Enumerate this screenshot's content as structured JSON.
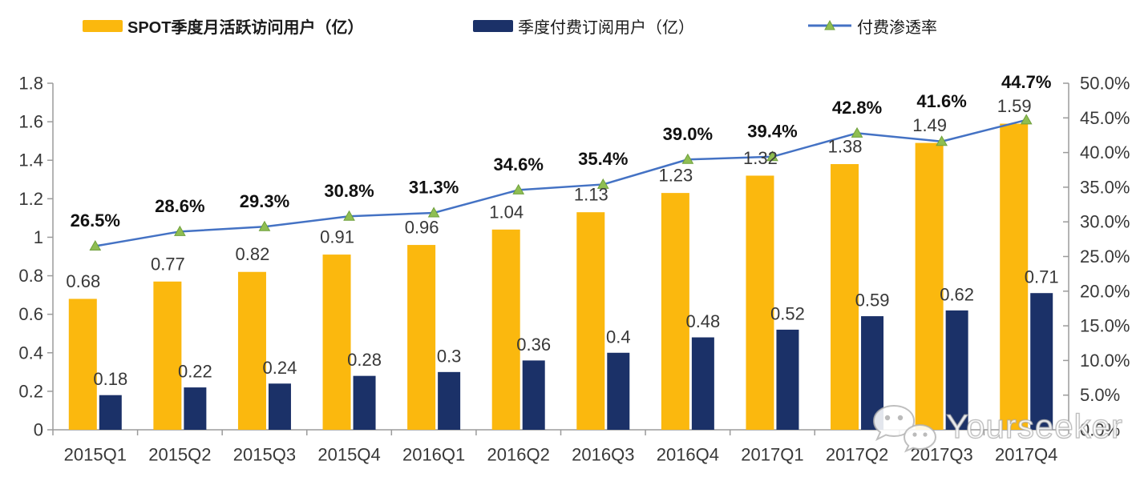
{
  "legend": [
    {
      "label": "SPOT季度月活跃访问用户（亿）",
      "swatch": "bar"
    },
    {
      "label": "季度付费订阅用户（亿）",
      "swatch": "bar"
    },
    {
      "label": "付费渗透率",
      "swatch": "line"
    }
  ],
  "watermark": {
    "brand": "Yourseeker",
    "icon": "wechat-icon"
  },
  "colors": {
    "mau_bar": "#FBB80E",
    "sub_bar": "#1B3168",
    "line": "#4472C4",
    "marker_fill": "#8FBE52",
    "marker_stroke": "#6FA03C",
    "axis": "#9B9B9B",
    "bar_label": "#383838",
    "pct_label": "#111111",
    "tick_label": "#383838"
  },
  "chart_data": {
    "type": "combo",
    "subtypes": [
      "bar",
      "bar",
      "line"
    ],
    "categories": [
      "2015Q1",
      "2015Q2",
      "2015Q3",
      "2015Q4",
      "2016Q1",
      "2016Q2",
      "2016Q3",
      "2016Q4",
      "2017Q1",
      "2017Q2",
      "2017Q3",
      "2017Q4"
    ],
    "series": [
      {
        "name": "SPOT季度月活跃访问用户（亿）",
        "type": "bar",
        "axis": "left",
        "values": [
          0.68,
          0.77,
          0.82,
          0.91,
          0.96,
          1.04,
          1.13,
          1.23,
          1.32,
          1.38,
          1.49,
          1.59
        ],
        "labels": [
          "0.68",
          "0.77",
          "0.82",
          "0.91",
          "0.96",
          "1.04",
          "1.13",
          "1.23",
          "1.32",
          "1.38",
          "1.49",
          "1.59"
        ]
      },
      {
        "name": "季度付费订阅用户（亿）",
        "type": "bar",
        "axis": "left",
        "values": [
          0.18,
          0.22,
          0.24,
          0.28,
          0.3,
          0.36,
          0.4,
          0.48,
          0.52,
          0.59,
          0.62,
          0.71
        ],
        "labels": [
          "0.18",
          "0.22",
          "0.24",
          "0.28",
          "0.3",
          "0.36",
          "0.4",
          "0.48",
          "0.52",
          "0.59",
          "0.62",
          "0.71"
        ]
      },
      {
        "name": "付费渗透率",
        "type": "line",
        "axis": "right",
        "marker": "triangle",
        "values": [
          26.5,
          28.6,
          29.3,
          30.8,
          31.3,
          34.6,
          35.4,
          39.0,
          39.4,
          42.8,
          41.6,
          44.7
        ],
        "labels": [
          "26.5%",
          "28.6%",
          "29.3%",
          "30.8%",
          "31.3%",
          "34.6%",
          "35.4%",
          "39.0%",
          "39.4%",
          "42.8%",
          "41.6%",
          "44.7%"
        ]
      }
    ],
    "left_axis": {
      "min": 0,
      "max": 1.8,
      "step": 0.2,
      "ticks": [
        "0",
        "0.2",
        "0.4",
        "0.6",
        "0.8",
        "1",
        "1.2",
        "1.4",
        "1.6",
        "1.8"
      ]
    },
    "right_axis": {
      "min": 0,
      "max": 50,
      "step": 5,
      "ticks": [
        "0.0%",
        "5.0%",
        "10.0%",
        "15.0%",
        "20.0%",
        "25.0%",
        "30.0%",
        "35.0%",
        "40.0%",
        "45.0%",
        "50.0%"
      ]
    },
    "grid": false,
    "legend_position": "top",
    "title": ""
  }
}
